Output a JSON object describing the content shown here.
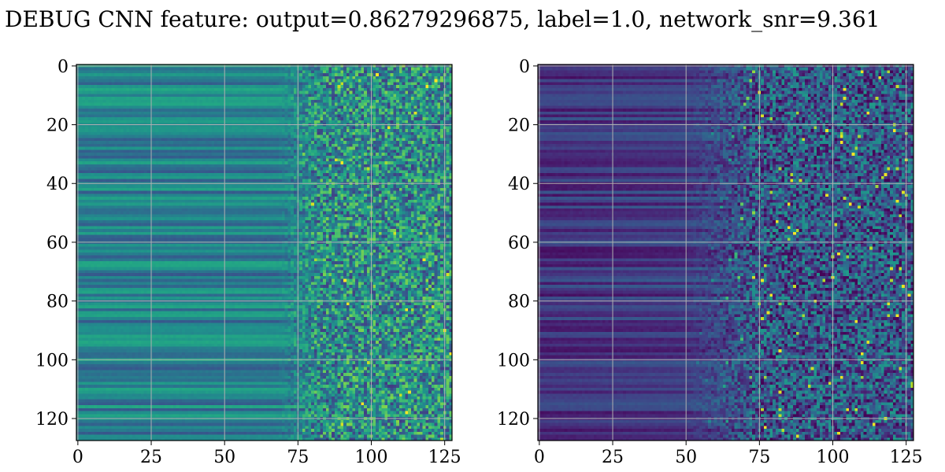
{
  "figure": {
    "title": "DEBUG CNN feature: output=0.86279296875, label=1.0, network_snr=9.361"
  },
  "chart_data": [
    {
      "type": "heatmap",
      "title": "",
      "xlabel": "",
      "ylabel": "",
      "rows": 128,
      "cols": 128,
      "xlim": [
        -0.5,
        127.5
      ],
      "ylim": [
        127.5,
        -0.5
      ],
      "x_ticks": [
        0,
        25,
        50,
        75,
        100,
        125
      ],
      "y_ticks": [
        0,
        20,
        40,
        60,
        80,
        100,
        120
      ],
      "colormap": "viridis",
      "grid": true,
      "grid_color": "#b0b0b0",
      "description_values": "smooth horizontal banding for columns 0-70, noisy speckle for columns 70-127; brighter overall (teal/green)"
    },
    {
      "type": "heatmap",
      "title": "",
      "xlabel": "",
      "ylabel": "",
      "rows": 128,
      "cols": 128,
      "xlim": [
        -0.5,
        127.5
      ],
      "ylim": [
        127.5,
        -0.5
      ],
      "x_ticks": [
        0,
        25,
        50,
        75,
        100,
        125
      ],
      "y_ticks": [
        0,
        20,
        40,
        60,
        80,
        100,
        120
      ],
      "colormap": "viridis",
      "grid": true,
      "grid_color": "#b0b0b0",
      "description_values": "darker overall (purple), smooth banding for columns 0-50, noisy speckle with bright yellow outliers for columns 60-127"
    }
  ]
}
